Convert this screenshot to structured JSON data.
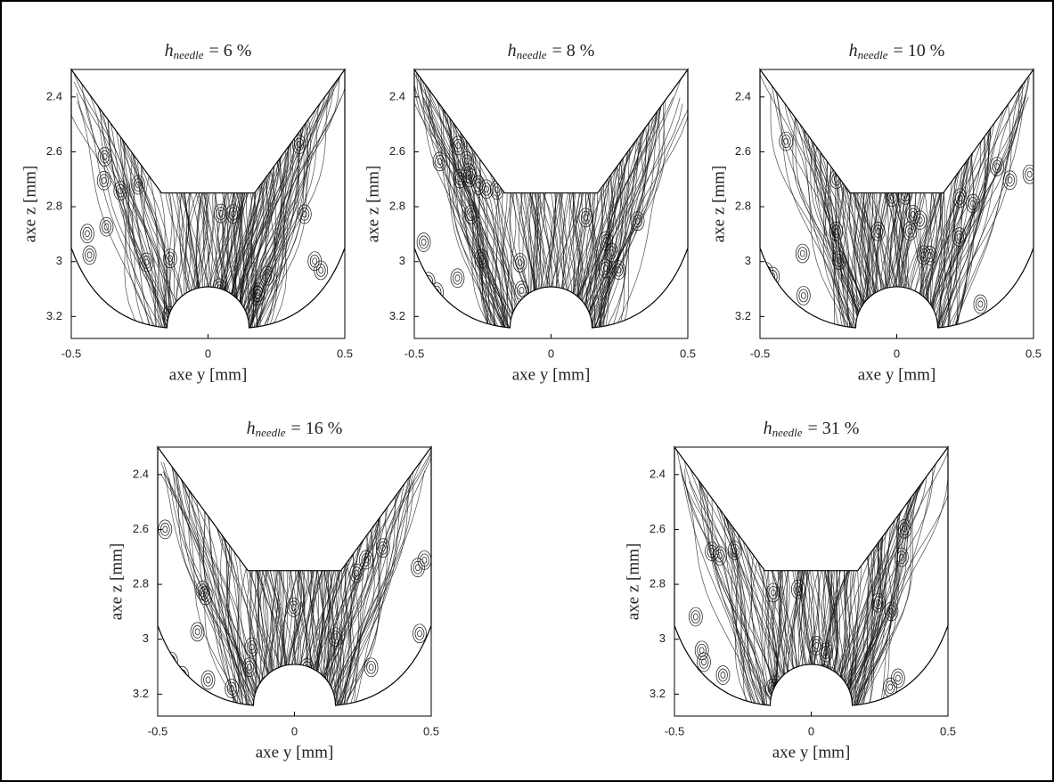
{
  "panels": [
    {
      "title": {
        "symbol": "h",
        "subscript": "needle",
        "rest": "= 6 %"
      },
      "xlabel": "axe y [mm]",
      "ylabel": "axe z [mm]",
      "xlim": [
        -0.5,
        0.5
      ],
      "ylim": [
        2.3,
        3.28
      ],
      "xticks": [
        -0.5,
        0,
        0.5
      ],
      "yticks": [
        2.4,
        2.6,
        2.8,
        3,
        3.2
      ]
    },
    {
      "title": {
        "symbol": "h",
        "subscript": "needle",
        "rest": "= 8 %"
      },
      "xlabel": "axe y [mm]",
      "ylabel": "axe z [mm]",
      "xlim": [
        -0.5,
        0.5
      ],
      "ylim": [
        2.3,
        3.28
      ],
      "xticks": [
        -0.5,
        0,
        0.5
      ],
      "yticks": [
        2.4,
        2.6,
        2.8,
        3,
        3.2
      ]
    },
    {
      "title": {
        "symbol": "h",
        "subscript": "needle",
        "rest": "= 10 %"
      },
      "xlabel": "axe y [mm]",
      "ylabel": "axe z [mm]",
      "xlim": [
        -0.5,
        0.5
      ],
      "ylim": [
        2.3,
        3.28
      ],
      "xticks": [
        -0.5,
        0,
        0.5
      ],
      "yticks": [
        2.4,
        2.6,
        2.8,
        3,
        3.2
      ]
    },
    {
      "title": {
        "symbol": "h",
        "subscript": "needle",
        "rest": "= 16 %"
      },
      "xlabel": "axe y [mm]",
      "ylabel": "axe z [mm]",
      "xlim": [
        -0.5,
        0.5
      ],
      "ylim": [
        2.3,
        3.28
      ],
      "xticks": [
        -0.5,
        0,
        0.5
      ],
      "yticks": [
        2.4,
        2.6,
        2.8,
        3,
        3.2
      ]
    },
    {
      "title": {
        "symbol": "h",
        "subscript": "needle",
        "rest": "= 31 %"
      },
      "xlabel": "axe y [mm]",
      "ylabel": "axe z [mm]",
      "xlim": [
        -0.5,
        0.5
      ],
      "ylim": [
        2.3,
        3.28
      ],
      "xticks": [
        -0.5,
        0,
        0.5
      ],
      "yticks": [
        2.4,
        2.6,
        2.8,
        3,
        3.2
      ]
    }
  ]
}
